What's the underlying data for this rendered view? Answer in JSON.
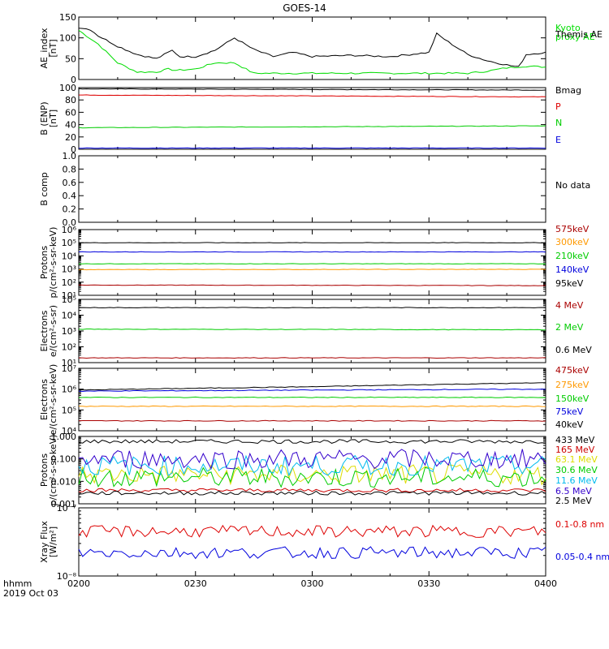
{
  "title": "GOES-14",
  "time_axis": {
    "label": "hhmm",
    "date": "2019 Oct 03",
    "ticks": [
      "0200",
      "0230",
      "0300",
      "0330",
      "0400"
    ]
  },
  "chart_data": [
    {
      "id": "ae",
      "type": "line",
      "ylabel": "AE_index\n[nT]",
      "ylim": [
        0,
        150
      ],
      "ytick_labels": [
        "0",
        "50",
        "100",
        "150"
      ],
      "series": [
        {
          "name": "Kyoto\nproxy AE",
          "color": "#00dd00",
          "x": [
            "0200",
            "0205",
            "0210",
            "0215",
            "0220",
            "0223",
            "0225",
            "0230",
            "0235",
            "0240",
            "0245",
            "0250",
            "0300",
            "0330",
            "0340",
            "0345",
            "0350",
            "0355",
            "0400"
          ],
          "values": [
            118,
            85,
            40,
            18,
            18,
            25,
            22,
            25,
            40,
            40,
            15,
            15,
            15,
            15,
            15,
            20,
            28,
            32,
            30
          ]
        },
        {
          "name": "Themis AE",
          "color": "#000000",
          "x": [
            "0200",
            "0203",
            "0205",
            "0210",
            "0215",
            "0220",
            "0224",
            "0226",
            "0230",
            "0235",
            "0240",
            "0245",
            "0250",
            "0255",
            "0300",
            "0310",
            "0320",
            "0330",
            "0332",
            "0335",
            "0340",
            "0345",
            "0350",
            "0353",
            "0355",
            "0400"
          ],
          "values": [
            125,
            120,
            105,
            80,
            60,
            50,
            70,
            55,
            55,
            70,
            100,
            72,
            55,
            65,
            55,
            58,
            55,
            65,
            110,
            90,
            60,
            45,
            35,
            30,
            60,
            65
          ]
        }
      ]
    },
    {
      "id": "benp",
      "type": "line",
      "ylabel": "B (ENP)\n[nT]",
      "ylim": [
        0,
        100
      ],
      "ytick_labels": [
        "0",
        "20",
        "40",
        "60",
        "80",
        "100"
      ],
      "series": [
        {
          "name": "Bmag",
          "color": "#000000",
          "x": [
            "0200",
            "0400"
          ],
          "values": [
            98,
            96
          ]
        },
        {
          "name": "P",
          "color": "#dd0000",
          "x": [
            "0200",
            "0400"
          ],
          "values": [
            88,
            85
          ]
        },
        {
          "name": "N",
          "color": "#00cc00",
          "x": [
            "0200",
            "0400"
          ],
          "values": [
            35,
            38
          ]
        },
        {
          "name": "E",
          "color": "#0000dd",
          "x": [
            "0200",
            "0400"
          ],
          "values": [
            2,
            2
          ]
        }
      ],
      "label_colors": [
        "#000000",
        "#dd0000",
        "#00cc00",
        "#0000dd"
      ]
    },
    {
      "id": "bcomp",
      "type": "line",
      "ylabel": "B comp",
      "ylim": [
        0,
        1
      ],
      "ytick_labels": [
        "0.0",
        "0.2",
        "0.4",
        "0.6",
        "0.8",
        "1.0"
      ],
      "note": "No data",
      "series": []
    },
    {
      "id": "protons_low",
      "type": "line",
      "log": true,
      "ylabel": "Protons\np/(cm²-s-sr-keV)",
      "ylim": [
        10,
        1000000
      ],
      "ytick_labels": [
        "10¹",
        "10²",
        "10³",
        "10⁴",
        "10⁵",
        "10⁶"
      ],
      "series": [
        {
          "name": "575keV",
          "color": "#aa0000",
          "x": [
            "0200",
            "0400"
          ],
          "values": [
            60,
            55
          ]
        },
        {
          "name": "300keV",
          "color": "#ff9900",
          "x": [
            "0200",
            "0400"
          ],
          "values": [
            900,
            950
          ]
        },
        {
          "name": "210keV",
          "color": "#00cc00",
          "x": [
            "0200",
            "0400"
          ],
          "values": [
            2500,
            2500
          ]
        },
        {
          "name": "140keV",
          "color": "#0000dd",
          "x": [
            "0200",
            "0400"
          ],
          "values": [
            20000,
            20000
          ]
        },
        {
          "name": "95keV",
          "color": "#000000",
          "x": [
            "0200",
            "0400"
          ],
          "values": [
            100000,
            100000
          ]
        }
      ]
    },
    {
      "id": "electrons_mev",
      "type": "line",
      "log": true,
      "ylabel": "Electrons\ne/(cm²-s-sr)",
      "ylim": [
        10,
        100000
      ],
      "ytick_labels": [
        "10¹",
        "10²",
        "10³",
        "10⁴",
        "10⁵"
      ],
      "series": [
        {
          "name": "4 MeV",
          "color": "#aa0000",
          "x": [
            "0200",
            "0400"
          ],
          "values": [
            20,
            20
          ]
        },
        {
          "name": "2 MeV",
          "color": "#00cc00",
          "x": [
            "0200",
            "0400"
          ],
          "values": [
            1300,
            1200
          ]
        },
        {
          "name": "0.6 MeV",
          "color": "#000000",
          "x": [
            "0200",
            "0400"
          ],
          "values": [
            30000,
            30000
          ]
        }
      ]
    },
    {
      "id": "electrons_kev",
      "type": "line",
      "log": true,
      "ylabel": "Electrons\ne/(cm²-s-sr-keV)",
      "ylim": [
        10000,
        10000000
      ],
      "ytick_labels": [
        "10⁴",
        "10⁵",
        "10⁶",
        "10⁷"
      ],
      "series": [
        {
          "name": "475keV",
          "color": "#aa0000",
          "x": [
            "0200",
            "0400"
          ],
          "values": [
            30000,
            30000
          ]
        },
        {
          "name": "275keV",
          "color": "#ff9900",
          "x": [
            "0200",
            "0400"
          ],
          "values": [
            150000,
            150000
          ]
        },
        {
          "name": "150keV",
          "color": "#00cc00",
          "x": [
            "0200",
            "0400"
          ],
          "values": [
            400000,
            400000
          ]
        },
        {
          "name": "75keV",
          "color": "#0000dd",
          "x": [
            "0200",
            "0300",
            "0400"
          ],
          "values": [
            800000,
            900000,
            1000000
          ]
        },
        {
          "name": "40keV",
          "color": "#000000",
          "x": [
            "0200",
            "0300",
            "0400"
          ],
          "values": [
            900000,
            1300000,
            2000000
          ]
        }
      ]
    },
    {
      "id": "protons_high",
      "type": "line",
      "log": true,
      "ylabel": "Protons\np/(cm²-s-sr-keV)",
      "ylim": [
        0.001,
        1
      ],
      "ytick_labels": [
        "0.001",
        "0.010",
        "0.100",
        "1.000"
      ],
      "series": [
        {
          "name": "433 MeV",
          "color": "#000000",
          "values_base": 0.6
        },
        {
          "name": "165 MeV",
          "color": "#cc0000",
          "values_base": 0.004
        },
        {
          "name": "63.1 MeV",
          "color": "#dddd00",
          "values_base": 0.02
        },
        {
          "name": "30.6 MeV",
          "color": "#00cc00",
          "values_base": 0.015
        },
        {
          "name": "11.6 MeV",
          "color": "#00bbee",
          "values_base": 0.05
        },
        {
          "name": "6.5 MeV",
          "color": "#3300cc",
          "values_base": 0.1
        },
        {
          "name": "2.5 MeV",
          "color": "#000000",
          "values_base": 0.003
        }
      ]
    },
    {
      "id": "xray",
      "type": "line",
      "log": true,
      "ylabel": "Xray Flux\n[W/m²]",
      "ylim": [
        1e-08,
        1e-07
      ],
      "ytick_labels": [
        "10⁻⁸",
        "10⁻⁷"
      ],
      "series": [
        {
          "name": "0.1-0.8 nm",
          "color": "#dd0000",
          "values_base": 4.5e-08
        },
        {
          "name": "0.05-0.4 nm",
          "color": "#0000dd",
          "values_base": 2.2e-08
        }
      ]
    }
  ]
}
